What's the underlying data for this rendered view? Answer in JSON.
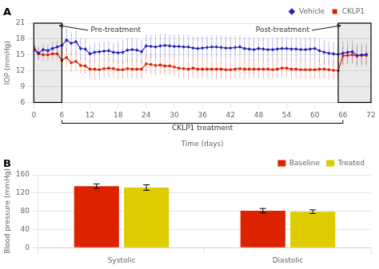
{
  "chart_data": [
    {
      "type": "line",
      "title": "A",
      "xlabel": "Time (days)",
      "ylabel": "IOP (mmHg)",
      "x": [
        0,
        1,
        2,
        3,
        4,
        5,
        6,
        7,
        8,
        9,
        10,
        11,
        12,
        13,
        14,
        15,
        16,
        17,
        18,
        19,
        20,
        21,
        22,
        23,
        24,
        25,
        26,
        27,
        28,
        29,
        30,
        31,
        32,
        33,
        34,
        35,
        36,
        37,
        38,
        39,
        40,
        41,
        42,
        43,
        44,
        45,
        46,
        47,
        48,
        49,
        50,
        51,
        52,
        53,
        54,
        55,
        56,
        57,
        58,
        59,
        60,
        61,
        62,
        63,
        64,
        65,
        66,
        67,
        68,
        69,
        70,
        71
      ],
      "series": [
        {
          "name": "Vehicle",
          "color": "#2222bb",
          "marker": "diamond",
          "values": [
            16.0,
            15.3,
            16.0,
            15.8,
            16.2,
            16.5,
            16.8,
            17.8,
            17.2,
            17.5,
            16.2,
            16.1,
            15.2,
            15.5,
            15.6,
            15.7,
            15.8,
            15.5,
            15.4,
            15.5,
            15.9,
            16.0,
            15.9,
            15.6,
            16.7,
            16.6,
            16.5,
            16.7,
            16.8,
            16.7,
            16.6,
            16.6,
            16.5,
            16.5,
            16.3,
            16.2,
            16.3,
            16.4,
            16.5,
            16.5,
            16.4,
            16.3,
            16.3,
            16.4,
            16.5,
            16.2,
            16.1,
            16.0,
            16.2,
            16.1,
            16.0,
            16.0,
            16.1,
            16.2,
            16.2,
            16.1,
            16.1,
            16.0,
            16.0,
            16.1,
            16.2,
            15.8,
            15.5,
            15.3,
            15.2,
            15.1,
            15.3,
            15.5,
            15.6,
            14.9,
            15.0,
            15.1
          ],
          "errors": [
            1.2,
            1.2,
            1.2,
            1.2,
            1.2,
            1.2,
            1.8,
            2.2,
            2.2,
            2.2,
            2.0,
            2.0,
            1.8,
            1.8,
            1.8,
            1.8,
            1.8,
            1.8,
            2.2,
            2.2,
            2.2,
            2.2,
            2.2,
            2.2,
            2.2,
            2.2,
            2.2,
            2.2,
            2.2,
            2.2,
            2.2,
            2.2,
            2.2,
            2.2,
            2.2,
            2.2,
            2.2,
            2.2,
            2.2,
            2.2,
            2.2,
            2.2,
            2.2,
            2.2,
            2.2,
            2.2,
            2.2,
            2.2,
            2.2,
            2.2,
            2.2,
            2.2,
            2.2,
            2.2,
            2.2,
            2.2,
            2.2,
            2.2,
            2.2,
            2.2,
            2.2,
            2.2,
            2.2,
            2.2,
            2.2,
            2.2,
            2.2,
            2.2,
            2.2,
            2.2,
            2.2,
            2.2
          ]
        },
        {
          "name": "CKLP1",
          "color": "#dd2200",
          "marker": "square",
          "values": [
            16.5,
            15.2,
            15.0,
            15.0,
            15.2,
            15.2,
            14.0,
            14.5,
            13.5,
            13.8,
            13.0,
            12.9,
            12.3,
            12.3,
            12.2,
            12.4,
            12.5,
            12.4,
            12.2,
            12.2,
            12.4,
            12.3,
            12.3,
            12.3,
            13.3,
            13.2,
            13.0,
            13.1,
            12.9,
            12.9,
            12.7,
            12.5,
            12.4,
            12.3,
            12.5,
            12.3,
            12.3,
            12.3,
            12.3,
            12.3,
            12.3,
            12.2,
            12.2,
            12.3,
            12.4,
            12.3,
            12.3,
            12.3,
            12.3,
            12.3,
            12.3,
            12.2,
            12.3,
            12.5,
            12.5,
            12.3,
            12.3,
            12.2,
            12.2,
            12.2,
            12.2,
            12.3,
            12.3,
            12.2,
            12.1,
            12.0,
            14.8,
            14.9,
            15.0,
            14.8,
            14.9,
            14.9
          ],
          "errors": [
            1.2,
            1.2,
            1.2,
            1.2,
            1.2,
            1.2,
            1.5,
            1.8,
            1.8,
            1.8,
            1.5,
            1.5,
            1.8,
            1.8,
            1.8,
            1.8,
            1.8,
            1.8,
            1.8,
            1.8,
            1.8,
            1.8,
            1.8,
            1.8,
            1.8,
            1.8,
            1.8,
            1.8,
            1.8,
            1.8,
            1.8,
            1.8,
            1.8,
            1.8,
            1.8,
            1.8,
            1.8,
            1.8,
            1.8,
            1.8,
            1.8,
            1.8,
            1.8,
            1.8,
            1.8,
            1.8,
            1.8,
            1.8,
            1.8,
            1.8,
            1.8,
            1.8,
            1.8,
            1.8,
            1.8,
            1.8,
            1.8,
            1.8,
            1.8,
            1.8,
            1.8,
            1.8,
            1.8,
            1.8,
            1.8,
            1.8,
            1.8,
            1.8,
            1.8,
            1.8,
            1.8,
            1.8
          ]
        }
      ],
      "xlim": [
        0,
        72
      ],
      "ylim": [
        6,
        21
      ],
      "xticks": [
        0,
        6,
        12,
        18,
        24,
        30,
        36,
        42,
        48,
        54,
        60,
        66,
        72
      ],
      "yticks": [
        6,
        9,
        12,
        15,
        18,
        21
      ],
      "grid": "y",
      "legend": "upper right",
      "annotations": [
        {
          "text": "Pre-treatment",
          "kind": "region",
          "x_range": [
            0,
            6
          ]
        },
        {
          "text": "Post-treatment",
          "kind": "region",
          "x_range": [
            65,
            72
          ]
        },
        {
          "text": "CKLP1 treatment",
          "kind": "bracket",
          "x_range": [
            6,
            66
          ]
        }
      ]
    },
    {
      "type": "bar",
      "title": "B",
      "ylabel": "Blood pressure (mmHg)",
      "categories": [
        "Systolic",
        "Diastolic"
      ],
      "series": [
        {
          "name": "Baseline",
          "color": "#dd2200",
          "values": [
            135,
            81
          ],
          "errors": [
            5,
            5
          ]
        },
        {
          "name": "Treated",
          "color": "#ddcc00",
          "values": [
            132,
            79
          ],
          "errors": [
            6,
            4
          ]
        }
      ],
      "ylim": [
        0,
        160
      ],
      "yticks": [
        0,
        40,
        80,
        120,
        160
      ],
      "grid": "y",
      "legend": "upper right"
    }
  ]
}
